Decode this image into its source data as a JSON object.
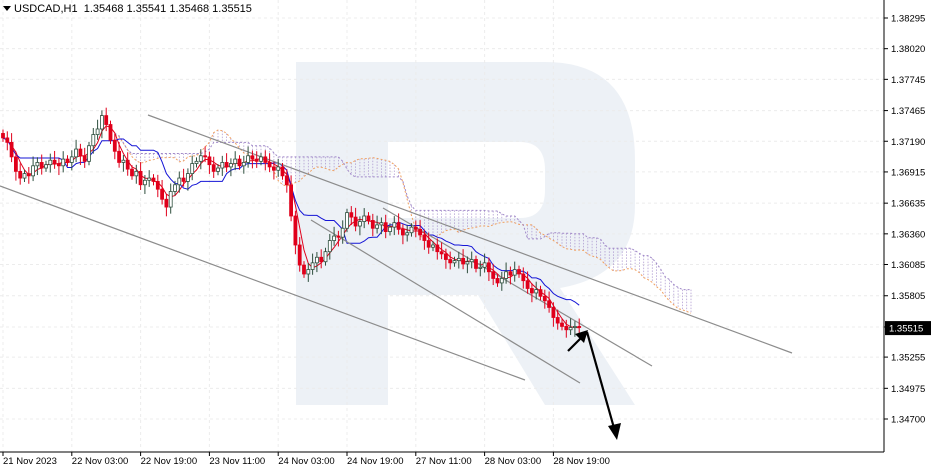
{
  "header": {
    "symbol": "USDCAD,H1",
    "ohlc": "1.35468 1.35541 1.35468 1.35515"
  },
  "chart_data": {
    "type": "candlestick",
    "symbol": "USDCAD",
    "timeframe": "H1",
    "ylim": [
      1.347,
      1.384
    ],
    "y_ticks": [
      "1.38295",
      "1.38020",
      "1.37745",
      "1.37465",
      "1.37190",
      "1.36915",
      "1.36635",
      "1.36360",
      "1.36085",
      "1.35805",
      "1.35525",
      "1.35255",
      "1.34975",
      "1.34700"
    ],
    "y_tick_values": [
      1.38295,
      1.3802,
      1.37745,
      1.37465,
      1.3719,
      1.36915,
      1.36635,
      1.3636,
      1.36085,
      1.35805,
      1.35525,
      1.35255,
      1.34975,
      1.347
    ],
    "x_ticks": [
      "21 Nov 2023",
      "22 Nov 03:00",
      "22 Nov 19:00",
      "23 Nov 11:00",
      "24 Nov 03:00",
      "24 Nov 19:00",
      "27 Nov 11:00",
      "28 Nov 03:00",
      "28 Nov 19:00"
    ],
    "x_tick_bar_index": [
      0,
      16,
      32,
      48,
      64,
      80,
      96,
      112,
      128
    ],
    "current_price": "1.35515",
    "current_price_value": 1.35515,
    "grid": true,
    "colors": {
      "bull": "#2e4f3e",
      "bear": "#e0001b",
      "tenkan": "#e0001b",
      "kijun": "#1515d6",
      "cloud": "#a088c8",
      "cloud_edge": "#f0a060",
      "channel": "#8c8c8c",
      "arrow": "#000000",
      "price_tag": "#000000"
    },
    "candles_close": [
      1.3722,
      1.3718,
      1.3705,
      1.3692,
      1.3686,
      1.369,
      1.3688,
      1.3697,
      1.37,
      1.3695,
      1.3698,
      1.3702,
      1.3699,
      1.3697,
      1.3703,
      1.37,
      1.3705,
      1.3712,
      1.3706,
      1.3701,
      1.3715,
      1.3725,
      1.373,
      1.3742,
      1.3734,
      1.372,
      1.371,
      1.37,
      1.3702,
      1.3694,
      1.3688,
      1.3692,
      1.368,
      1.3684,
      1.3686,
      1.3683,
      1.3676,
      1.3667,
      1.366,
      1.3674,
      1.368,
      1.3686,
      1.3683,
      1.369,
      1.3699,
      1.3701,
      1.3706,
      1.3705,
      1.3698,
      1.3692,
      1.3695,
      1.37,
      1.3696,
      1.3699,
      1.3703,
      1.3697,
      1.37,
      1.3706,
      1.3703,
      1.3701,
      1.3705,
      1.37,
      1.3696,
      1.3693,
      1.3696,
      1.3688,
      1.368,
      1.3652,
      1.3626,
      1.3608,
      1.36,
      1.3604,
      1.361,
      1.3615,
      1.3611,
      1.362,
      1.363,
      1.3634,
      1.3633,
      1.3641,
      1.3655,
      1.3651,
      1.3643,
      1.3647,
      1.3652,
      1.3648,
      1.3641,
      1.3644,
      1.3646,
      1.3638,
      1.3642,
      1.3646,
      1.364,
      1.3635,
      1.3637,
      1.3642,
      1.364,
      1.3635,
      1.363,
      1.3624,
      1.3626,
      1.362,
      1.3618,
      1.3613,
      1.361,
      1.3612,
      1.3614,
      1.3609,
      1.3611,
      1.3613,
      1.3605,
      1.3606,
      1.361,
      1.3602,
      1.3596,
      1.3592,
      1.3596,
      1.3602,
      1.3599,
      1.3604,
      1.36,
      1.3594,
      1.3587,
      1.3583,
      1.3586,
      1.358,
      1.3576,
      1.357,
      1.3561,
      1.3556,
      1.3553,
      1.355,
      1.3552,
      1.3553,
      1.3552
    ]
  },
  "annotations": {
    "forecast_arrows": "up then down"
  }
}
